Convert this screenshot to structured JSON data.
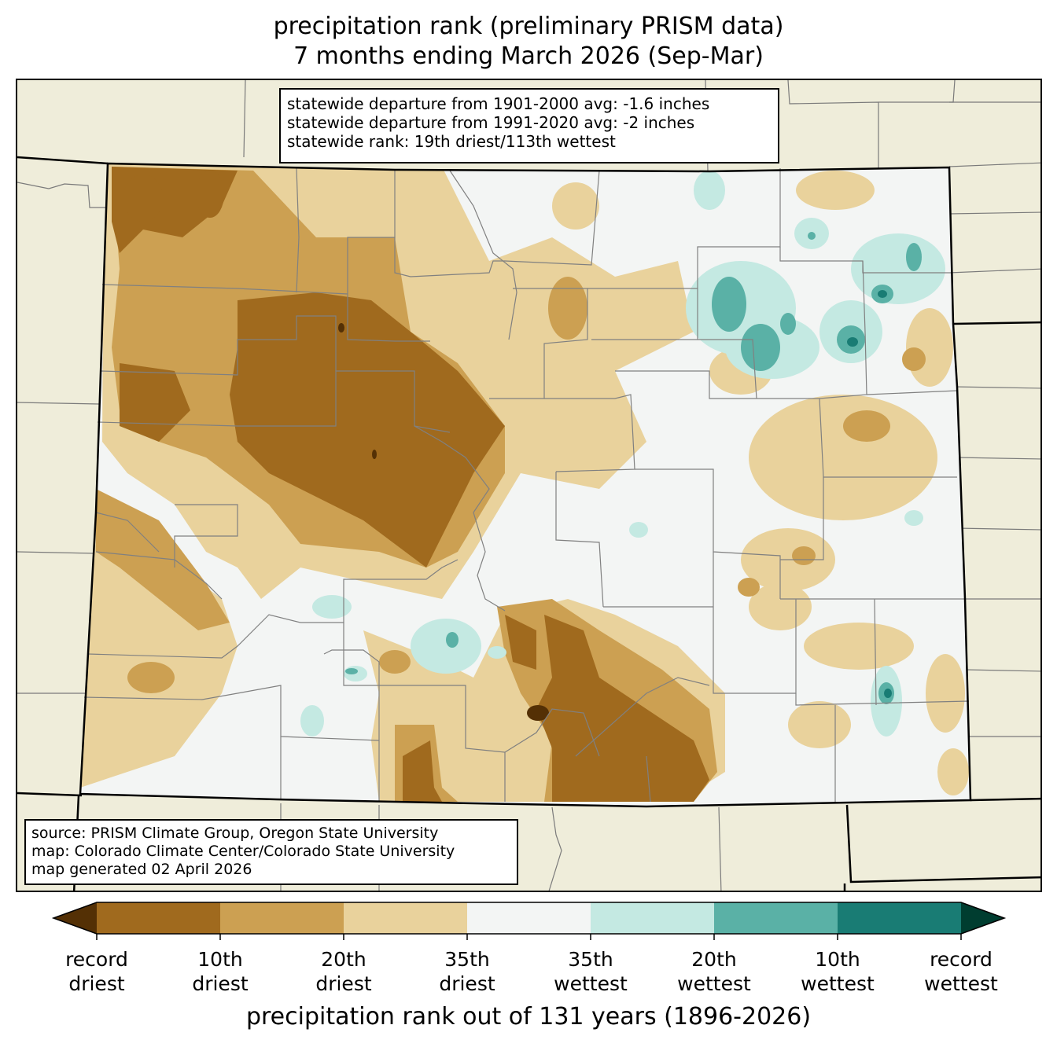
{
  "title": {
    "line1": "precipitation rank (preliminary PRISM data)",
    "line2": "7 months ending March 2026 (Sep-Mar)"
  },
  "stats": {
    "line1": "statewide departure from 1901-2000 avg: -1.6 inches",
    "line2": "statewide departure from 1991-2020 avg: -2 inches",
    "line3": "statewide rank: 19th driest/113th wettest"
  },
  "credits": {
    "line1": "source: PRISM Climate Group, Oregon State University",
    "line2": "map: Colorado Climate Center/Colorado State University",
    "line3": "map generated 02 April 2026"
  },
  "colorbar": {
    "label": "precipitation rank out of 131 years (1896-2026)",
    "ticks": [
      {
        "l1": "record",
        "l2": "driest"
      },
      {
        "l1": "10th",
        "l2": "driest"
      },
      {
        "l1": "20th",
        "l2": "driest"
      },
      {
        "l1": "35th",
        "l2": "driest"
      },
      {
        "l1": "35th",
        "l2": "wettest"
      },
      {
        "l1": "20th",
        "l2": "wettest"
      },
      {
        "l1": "10th",
        "l2": "wettest"
      },
      {
        "l1": "record",
        "l2": "wettest"
      }
    ],
    "colors": {
      "under": "#543005",
      "bins": [
        "#a06a1e",
        "#cca052",
        "#e9d29c",
        "#f3f5f4",
        "#c4e9e2",
        "#5ab1a6",
        "#197c74"
      ],
      "over": "#003d30"
    }
  },
  "map_colors": {
    "background": "#efedda",
    "state_fill": "#f3f5f4",
    "boundary": "#000000",
    "county_lines": "#808080"
  }
}
